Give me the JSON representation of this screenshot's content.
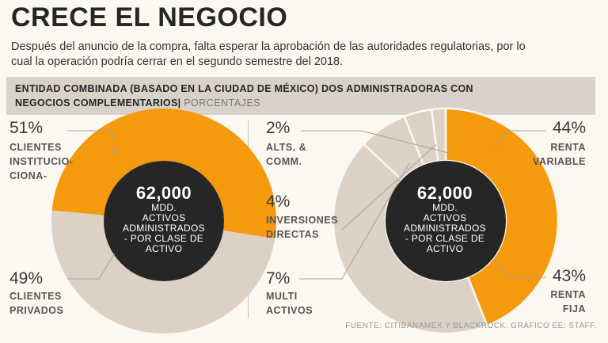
{
  "header": {
    "title": "CRECE EL NEGOCIO",
    "subtitle": "Después del anuncio de la compra, falta esperar la aprobación de las autoridades regulatorias, por lo cual la operación podría cerrar en el segundo semestre del 2018."
  },
  "band": {
    "text": "ENTIDAD COMBINADA (BASADO EN LA CIUDAD DE MÉXICO) DOS ADMINISTRADORAS CON NEGOCIOS COMPLEMENTARIOS",
    "separator": "|",
    "unit": "PORCENTAJES"
  },
  "colors": {
    "orange": "#f59a0c",
    "beige": "#dcd1c4",
    "dark": "#262626",
    "leader": "#aaa39a"
  },
  "chart_data": [
    {
      "type": "pie",
      "center": {
        "value": "62,000",
        "caption": "MDD.\nACTIVOS\nADMINISTRADOS\n- POR CLASE DE\nACTIVO"
      },
      "slices": [
        {
          "label": "CLIENTES INSTITUCIONALES",
          "label_display": "CLIENTES\nINSTITUCIO-\nCIONA-",
          "value": 51,
          "display": "51%",
          "color": "#f59a0c"
        },
        {
          "label": "CLIENTES PRIVADOS",
          "label_display": "CLIENTES\nPRIVADOS",
          "value": 49,
          "display": "49%",
          "color": "#dcd1c4"
        }
      ]
    },
    {
      "type": "pie",
      "center": {
        "value": "62,000",
        "caption": "MDD.\nACTIVOS\nADMINISTRADOS\n- POR CLASE DE\nACTIVO"
      },
      "slices": [
        {
          "label": "RENTA VARIABLE",
          "label_display": "RENTA\nVARIABLE",
          "value": 44,
          "display": "44%",
          "color": "#f59a0c"
        },
        {
          "label": "RENTA FIJA",
          "label_display": "RENTA\nFIJA",
          "value": 43,
          "display": "43%",
          "color": "#dcd1c4"
        },
        {
          "label": "MULTI ACTIVOS",
          "label_display": "MULTI\nACTIVOS",
          "value": 7,
          "display": "7%",
          "color": "#dcd1c4"
        },
        {
          "label": "INVERSIONES DIRECTAS",
          "label_display": "INVERSIONES\nDIRECTAS",
          "value": 4,
          "display": "4%",
          "color": "#dcd1c4"
        },
        {
          "label": "ALTS. & COMM.",
          "label_display": "ALTS. &\nCOMM.",
          "value": 2,
          "display": "2%",
          "color": "#dcd1c4"
        }
      ]
    }
  ],
  "source": "FUENTE: CITIBANAMEX Y BLACKROCK. GRÁFICO EE: STAFF."
}
